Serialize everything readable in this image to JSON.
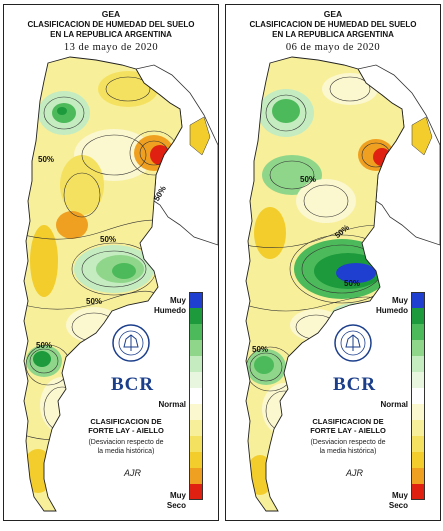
{
  "panels": [
    {
      "org": "GEA",
      "title_line1": "CLASIFICACION DE HUMEDAD DEL SUELO",
      "title_line2": "EN LA REPUBLICA ARGENTINA",
      "date": "13 de mayo de 2020",
      "contour_labels": [
        "50%",
        "50%",
        "50%",
        "50%",
        "50%"
      ],
      "scale_top": "Muy\nHumedo",
      "scale_mid": "Normal",
      "scale_bottom": "Muy\nSeco",
      "brand": "BCR",
      "classification": "CLASIFICACION DE\nFORTE LAY - AIELLO",
      "classification_note": "(Desviacion respecto de\nla media histórica)",
      "signature": "AJR"
    },
    {
      "org": "GEA",
      "title_line1": "CLASIFICACION DE HUMEDAD DEL SUELO",
      "title_line2": "EN LA REPUBLICA ARGENTINA",
      "date": "06 de mayo de 2020",
      "contour_labels": [
        "50%",
        "50%",
        "50%",
        "50%"
      ],
      "scale_top": "Muy\nHumedo",
      "scale_mid": "Normal",
      "scale_bottom": "Muy\nSeco",
      "brand": "BCR",
      "classification": "CLASIFICACION DE\nFORTE LAY - AIELLO",
      "classification_note": "(Desviacion respecto de\nla media histórica)",
      "signature": "AJR"
    }
  ],
  "scale_colors": [
    "#1f3fd0",
    "#1c9a3c",
    "#4cba5a",
    "#8fd68a",
    "#c4ecc0",
    "#e8f6e0",
    "#ffffff",
    "#fbf7cf",
    "#f8ef9a",
    "#f5e160",
    "#f2cd2c",
    "#f0a020",
    "#e02010"
  ],
  "colors": {
    "very_dry": "#e02010",
    "dry": "#f0a020",
    "moderately_dry": "#f2cd2c",
    "slightly_dry": "#f8ef9a",
    "normal": "#fbf7cf",
    "slightly_wet": "#c4ecc0",
    "wet": "#4cba5a",
    "very_wet": "#1c9a3c",
    "extremely_wet": "#1f3fd0",
    "brand_blue": "#1c3f8c"
  }
}
